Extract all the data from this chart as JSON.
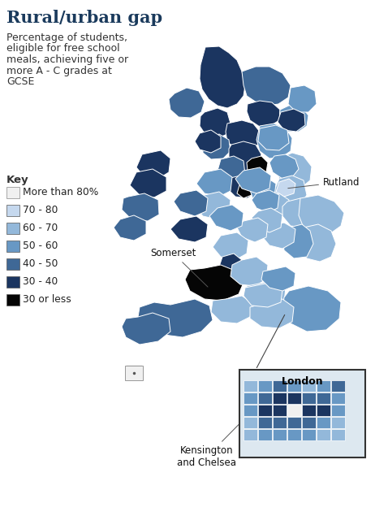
{
  "title": "Rural/urban gap",
  "subtitle_lines": [
    "Percentage of students,",
    "eligible for free school",
    "meals, achieving five or",
    "more A - C grades at",
    "GCSE"
  ],
  "title_color": "#1a3a5c",
  "title_fontsize": 15,
  "subtitle_fontsize": 9,
  "key_title": "Key",
  "legend_items": [
    {
      "label": "More than 80%",
      "color": "#f0f0f0"
    },
    {
      "label": "70 - 80",
      "color": "#c5d8ee"
    },
    {
      "label": "60 - 70",
      "color": "#93b8da"
    },
    {
      "label": "50 - 60",
      "color": "#6898c4"
    },
    {
      "label": "40 - 50",
      "color": "#3f6896"
    },
    {
      "label": "30 - 40",
      "color": "#1b3560"
    },
    {
      "label": "30 or less",
      "color": "#050505"
    }
  ],
  "background_color": "#ffffff",
  "map_edge_color": "#ffffff",
  "map_edge_lw": 0.7,
  "annotation_fontsize": 8.5,
  "annotation_color": "#111111"
}
